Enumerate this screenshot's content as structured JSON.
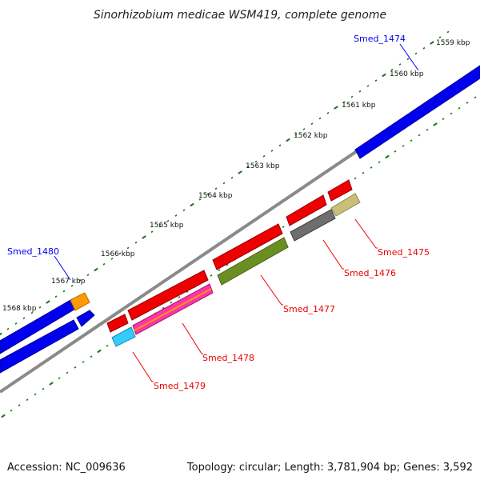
{
  "title": "Sinorhizobium medicae WSM419, complete genome",
  "footer": {
    "accession": "Accession: NC_009636",
    "summary": "Topology: circular; Length: 3,781,904 bp; Genes: 3,592"
  },
  "scale_labels": [
    "1559 kbp",
    "1560 kbp",
    "1561 kbp",
    "1562 kbp",
    "1563 kbp",
    "1564 kbp",
    "1565 kbp",
    "1566 kbp",
    "1567 kbp",
    "1568 kbp"
  ],
  "gene_labels": {
    "forward": [
      "Smed_1474",
      "Smed_1480"
    ],
    "reverse": [
      "Smed_1475",
      "Smed_1476",
      "Smed_1477",
      "Smed_1478",
      "Smed_1479"
    ]
  },
  "colors": {
    "forward_strand": "#0000ee",
    "reverse_strand": "#ee0000",
    "backbone": "#8a8a8a",
    "ticks": "#1a7a1a",
    "orange": "#ff9900",
    "olive": "#6b8e23",
    "khaki": "#c8c07a",
    "gray": "#6e6e6e",
    "magenta": "#ff33aa",
    "cyan": "#33ccff"
  }
}
